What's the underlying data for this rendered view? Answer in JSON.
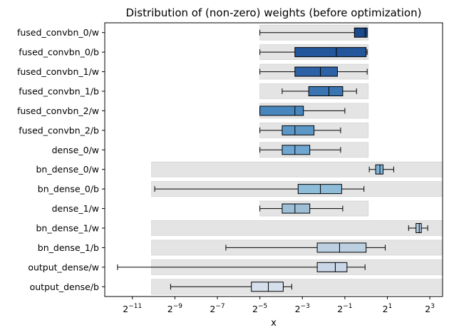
{
  "chart_data": {
    "type": "boxplot",
    "title": "Distribution of (non-zero) weights (before optimization)",
    "xlabel": "x",
    "x_scale": "log2",
    "xlim": [
      -12.3,
      3.6
    ],
    "x_ticks": [
      {
        "base": "2",
        "exp": "−11",
        "value": -11
      },
      {
        "base": "2",
        "exp": "−9",
        "value": -9
      },
      {
        "base": "2",
        "exp": "−7",
        "value": -7
      },
      {
        "base": "2",
        "exp": "−5",
        "value": -5
      },
      {
        "base": "2",
        "exp": "−3",
        "value": -3
      },
      {
        "base": "2",
        "exp": "−1",
        "value": -1
      },
      {
        "base": "2",
        "exp": "1",
        "value": 1
      },
      {
        "base": "2",
        "exp": "3",
        "value": 3
      }
    ],
    "range_band_color": "#e4e4e4",
    "series": [
      {
        "label": "fused_convbn_0/w",
        "band": [
          -5,
          0.1
        ],
        "whisker_low": -5,
        "q1": -0.55,
        "median": -0.05,
        "q3": 0.05,
        "whisker_high": 0.05,
        "color": "#1b4a8c"
      },
      {
        "label": "fused_convbn_0/b",
        "band": [
          -5,
          0.1
        ],
        "whisker_low": -5,
        "q1": -3.35,
        "median": -1.4,
        "q3": 0.0,
        "whisker_high": 0.05,
        "color": "#23569b"
      },
      {
        "label": "fused_convbn_1/w",
        "band": [
          -5,
          0.1
        ],
        "whisker_low": -5,
        "q1": -3.35,
        "median": -2.15,
        "q3": -1.35,
        "whisker_high": 0.05,
        "color": "#2d63a6"
      },
      {
        "label": "fused_convbn_1/b",
        "band": [
          -5,
          0.1
        ],
        "whisker_low": -3.95,
        "q1": -2.7,
        "median": -1.75,
        "q3": -1.1,
        "whisker_high": -0.45,
        "color": "#3a75b1"
      },
      {
        "label": "fused_convbn_2/w",
        "band": [
          -5,
          0.1
        ],
        "whisker_low": -5,
        "q1": -5,
        "median": -3.35,
        "q3": -2.95,
        "whisker_high": -1.0,
        "color": "#4887bd"
      },
      {
        "label": "fused_convbn_2/b",
        "band": [
          -5,
          0.1
        ],
        "whisker_low": -5,
        "q1": -3.95,
        "median": -3.35,
        "q3": -2.45,
        "whisker_high": -1.2,
        "color": "#5b98c8"
      },
      {
        "label": "dense_0/w",
        "band": [
          -5,
          0.1
        ],
        "whisker_low": -5,
        "q1": -3.95,
        "median": -3.35,
        "q3": -2.65,
        "whisker_high": -1.2,
        "color": "#6ea7d1"
      },
      {
        "label": "bn_dense_0/w",
        "band": [
          -10.1,
          3.6
        ],
        "whisker_low": 0.15,
        "q1": 0.45,
        "median": 0.65,
        "q3": 0.8,
        "whisker_high": 1.3,
        "color": "#7fb3d8"
      },
      {
        "label": "bn_dense_0/b",
        "band": [
          -10.1,
          3.6
        ],
        "whisker_low": -9.95,
        "q1": -3.2,
        "median": -2.15,
        "q3": -1.15,
        "whisker_high": -0.1,
        "color": "#8ebdda"
      },
      {
        "label": "dense_1/w",
        "band": [
          -5,
          0.1
        ],
        "whisker_low": -5,
        "q1": -3.95,
        "median": -3.35,
        "q3": -2.65,
        "whisker_high": -1.1,
        "color": "#9fbfd6"
      },
      {
        "label": "bn_dense_1/w",
        "band": [
          -10.1,
          3.6
        ],
        "whisker_low": 2.0,
        "q1": 2.35,
        "median": 2.5,
        "q3": 2.6,
        "whisker_high": 2.9,
        "color": "#b0c9de"
      },
      {
        "label": "bn_dense_1/b",
        "band": [
          -10.1,
          3.6
        ],
        "whisker_low": -6.6,
        "q1": -2.3,
        "median": -1.25,
        "q3": 0.0,
        "whisker_high": 0.9,
        "color": "#bcd0e2"
      },
      {
        "label": "output_dense/w",
        "band": [
          -10.1,
          3.6
        ],
        "whisker_low": -11.7,
        "q1": -2.3,
        "median": -1.45,
        "q3": -0.9,
        "whisker_high": -0.05,
        "color": "#c8d6e6"
      },
      {
        "label": "output_dense/b",
        "band": [
          -10.1,
          3.6
        ],
        "whisker_low": -9.2,
        "q1": -5.4,
        "median": -4.6,
        "q3": -3.9,
        "whisker_high": -3.5,
        "color": "#d6e0ec"
      }
    ]
  }
}
